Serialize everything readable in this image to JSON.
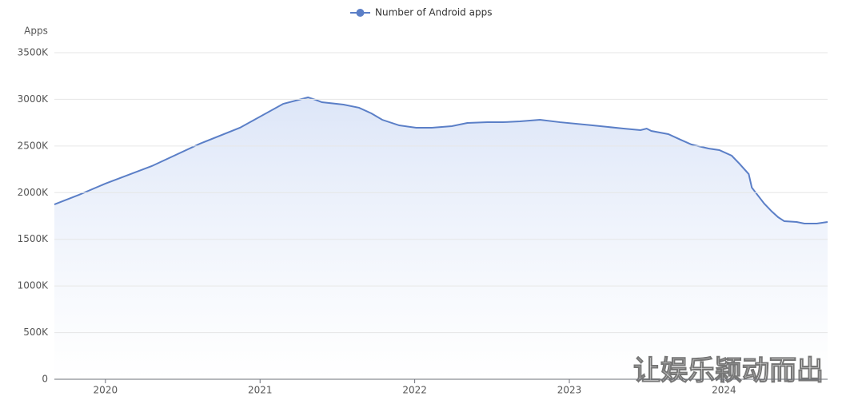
{
  "chart_data": {
    "type": "line",
    "y_label": "Apps",
    "legend": "top",
    "watermark": "让娱乐颖动而出",
    "grid": true,
    "xlim": [
      2019.67,
      2024.67
    ],
    "xticks": [
      2020,
      2021,
      2022,
      2023,
      2024
    ],
    "ylim": [
      0,
      3500000
    ],
    "yticks": [
      0,
      {
        "value": 500000,
        "label": "500K"
      },
      {
        "value": 1000000,
        "label": "1000K"
      },
      {
        "value": 1500000,
        "label": "1500K"
      },
      {
        "value": 2000000,
        "label": "2000K"
      },
      {
        "value": 2500000,
        "label": "2500K"
      },
      {
        "value": 3000000,
        "label": "3000K"
      },
      {
        "value": 3500000,
        "label": "3500K"
      }
    ],
    "x": [
      2019.67,
      2019.83,
      2020.0,
      2020.3,
      2020.61,
      2020.87,
      2021.15,
      2021.31,
      2021.36,
      2021.4,
      2021.54,
      2021.64,
      2021.72,
      2021.79,
      2021.9,
      2022.01,
      2022.11,
      2022.24,
      2022.34,
      2022.47,
      2022.57,
      2022.68,
      2022.81,
      2022.94,
      2023.15,
      2023.35,
      2023.46,
      2023.5,
      2023.53,
      2023.64,
      2023.72,
      2023.79,
      2023.9,
      2023.97,
      2024.05,
      2024.1,
      2024.16,
      2024.18,
      2024.26,
      2024.31,
      2024.35,
      2024.39,
      2024.47,
      2024.52,
      2024.6,
      2024.67
    ],
    "series": [
      {
        "name": "Number of Android apps",
        "color": "#5b7fc7",
        "values": [
          1874000,
          1977000,
          2097000,
          2285000,
          2524000,
          2696000,
          2952000,
          3021000,
          2995000,
          2969000,
          2944000,
          2910000,
          2850000,
          2781000,
          2721000,
          2696000,
          2696000,
          2713000,
          2747000,
          2755000,
          2755000,
          2764000,
          2781000,
          2755000,
          2721000,
          2687000,
          2670000,
          2687000,
          2661000,
          2627000,
          2567000,
          2516000,
          2473000,
          2456000,
          2396000,
          2310000,
          2199000,
          2054000,
          1883000,
          1797000,
          1737000,
          1694000,
          1686000,
          1669000,
          1669000,
          1686000
        ]
      }
    ]
  }
}
